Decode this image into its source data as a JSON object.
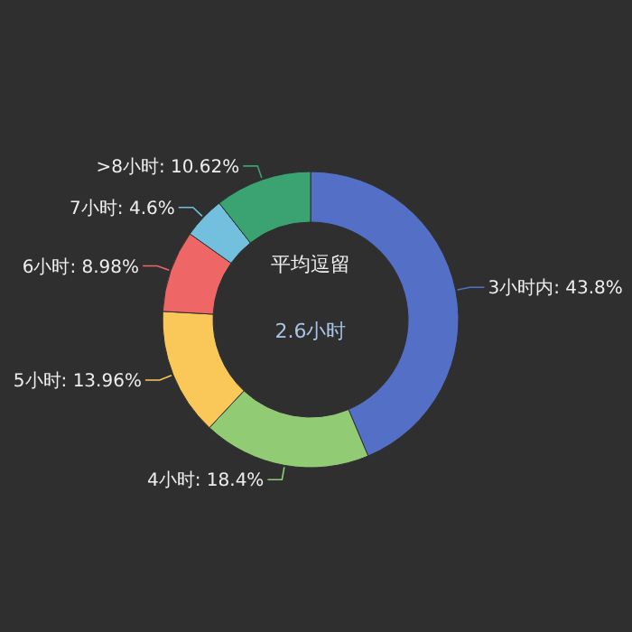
{
  "chart_data": {
    "type": "donut",
    "title": "平均逗留",
    "subtitle": "2.6小时",
    "categories": [
      "3小时内",
      "4小时",
      "5小时",
      "6小时",
      "7小时",
      ">8小时"
    ],
    "values": [
      43.8,
      18.4,
      13.96,
      8.98,
      4.6,
      10.62
    ],
    "value_labels": [
      "43.8%",
      "18.4%",
      "13.96%",
      "8.98%",
      "4.6%",
      "10.62%"
    ],
    "colors": [
      "#5470c6",
      "#91cc75",
      "#fac858",
      "#ee6666",
      "#73c0de",
      "#3ba272"
    ]
  }
}
